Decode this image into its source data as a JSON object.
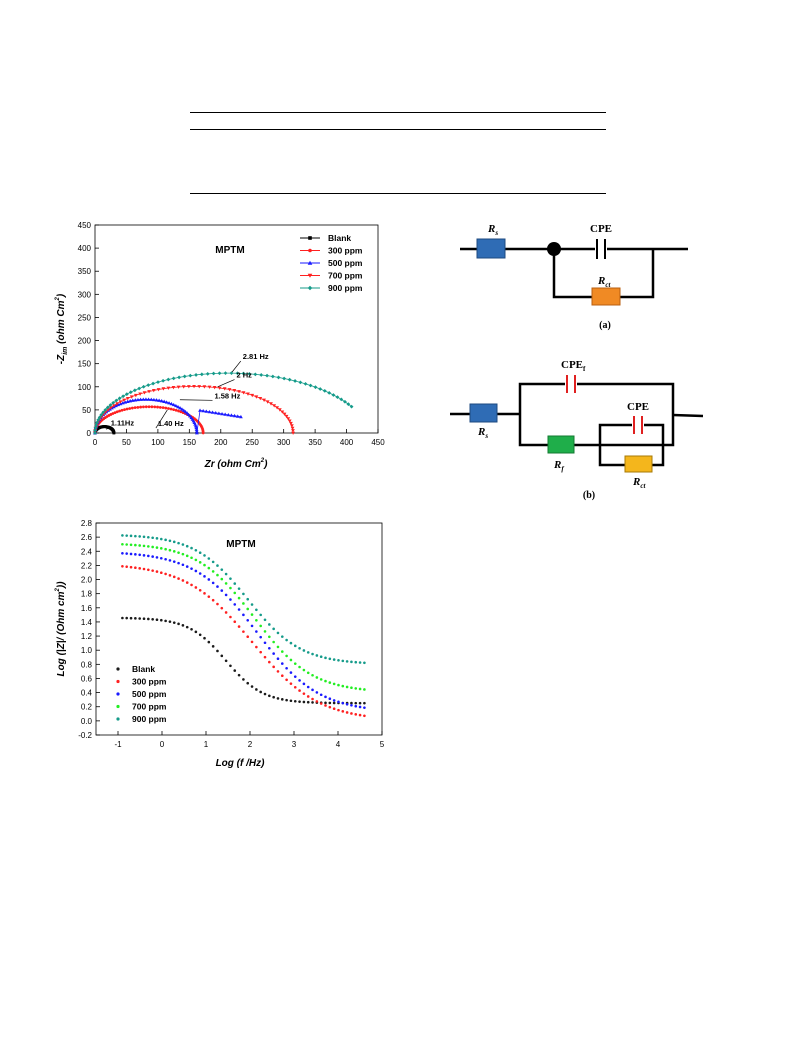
{
  "nyquist": {
    "type": "scatter",
    "title": "MPTM",
    "xlabel_main": "Zr",
    "xlabel_unit": "(ohm Cm",
    "ylabel_main": "-Z",
    "ylabel_sub": "im",
    "ylabel_unit": "(ohm Cm",
    "xlim": [
      0,
      450
    ],
    "ylim": [
      0,
      450
    ],
    "xticks": [
      0,
      50,
      100,
      150,
      200,
      250,
      300,
      350,
      400,
      450
    ],
    "yticks": [
      0,
      50,
      100,
      150,
      200,
      250,
      300,
      350,
      400,
      450
    ],
    "legend_position": "top-right",
    "series": [
      {
        "name": "Blank",
        "color": "#000000",
        "marker": "square",
        "rct": 30,
        "rs": 0,
        "peak_factor": 0.92,
        "tail": 0
      },
      {
        "name": "300 ppm",
        "color": "#ff2020",
        "marker": "circle",
        "rct": 172,
        "rs": 0,
        "peak_factor": 0.66,
        "tail": 0
      },
      {
        "name": "500 ppm",
        "color": "#1a1aff",
        "marker": "triangle",
        "rct": 162,
        "rs": 0,
        "peak_factor": 0.9,
        "tail": 70
      },
      {
        "name": "700 ppm",
        "color": "#ff2020",
        "marker": "triangle-down",
        "rct": 315,
        "rs": 0,
        "peak_factor": 0.64,
        "tail": 0
      },
      {
        "name": "900 ppm",
        "color": "#159b8a",
        "marker": "diamond",
        "rct": 440,
        "rs": 0,
        "peak_factor": 0.6,
        "tail": 0,
        "end_x": 408,
        "end_y": 57
      }
    ],
    "annotations": [
      {
        "text": "2.81 Hz",
        "x": 218,
        "y": 132,
        "tx": 235,
        "ty": 160
      },
      {
        "text": "2 Hz",
        "x": 195,
        "y": 100,
        "tx": 225,
        "ty": 120
      },
      {
        "text": "1.58 Hz",
        "x": 135,
        "y": 72,
        "tx": 190,
        "ty": 75
      },
      {
        "text": "1.40 Hz",
        "x": 115,
        "y": 50,
        "tx": 100,
        "ty": 15
      },
      {
        "text": "1.11Hz",
        "x": 18,
        "y": 8,
        "tx": 25,
        "ty": 16
      }
    ]
  },
  "circuit_a": {
    "rs_label": "R",
    "rs_sub": "s",
    "cpe_label": "CPE",
    "rct_label": "R",
    "rct_sub": "ct",
    "caption": "(a)"
  },
  "circuit_b": {
    "cpef_label": "CPE",
    "cpef_sub": "f",
    "cpe_label": "CPE",
    "rs_label": "R",
    "rs_sub": "s",
    "rf_label": "R",
    "rf_sub": "f",
    "rct_label": "R",
    "rct_sub": "ct",
    "caption": "(b)"
  },
  "bode": {
    "type": "scatter",
    "title": "MPTM",
    "xlabel": "Log (f /Hz)",
    "ylabel_part1": "Log (|Z|/ (Ohm cm",
    "ylabel_part2": "))",
    "xlim": [
      -1.5,
      5
    ],
    "ylim": [
      -0.2,
      2.8
    ],
    "xticks": [
      -1,
      0,
      1,
      2,
      3,
      4,
      5
    ],
    "yticks": [
      -0.2,
      0.0,
      0.2,
      0.4,
      0.6,
      0.8,
      1.0,
      1.2,
      1.4,
      1.6,
      1.8,
      2.0,
      2.2,
      2.4,
      2.6,
      2.8
    ],
    "legend_position": "bottom-left",
    "series": [
      {
        "name": "Blank",
        "color": "#1a1a1a",
        "high": 1.46,
        "low": 0.25,
        "center": 1.45,
        "width": 0.42
      },
      {
        "name": "300 ppm",
        "color": "#ff2020",
        "high": 2.23,
        "low": 0.0,
        "center": 2.05,
        "width": 0.75
      },
      {
        "name": "500 ppm",
        "color": "#1a1aff",
        "high": 2.4,
        "low": 0.12,
        "center": 2.15,
        "width": 0.7
      },
      {
        "name": "700 ppm",
        "color": "#22ee22",
        "high": 2.52,
        "low": 0.4,
        "center": 2.1,
        "width": 0.65
      },
      {
        "name": "900 ppm",
        "color": "#159b8a",
        "high": 2.64,
        "low": 0.8,
        "center": 1.95,
        "width": 0.6
      }
    ]
  }
}
